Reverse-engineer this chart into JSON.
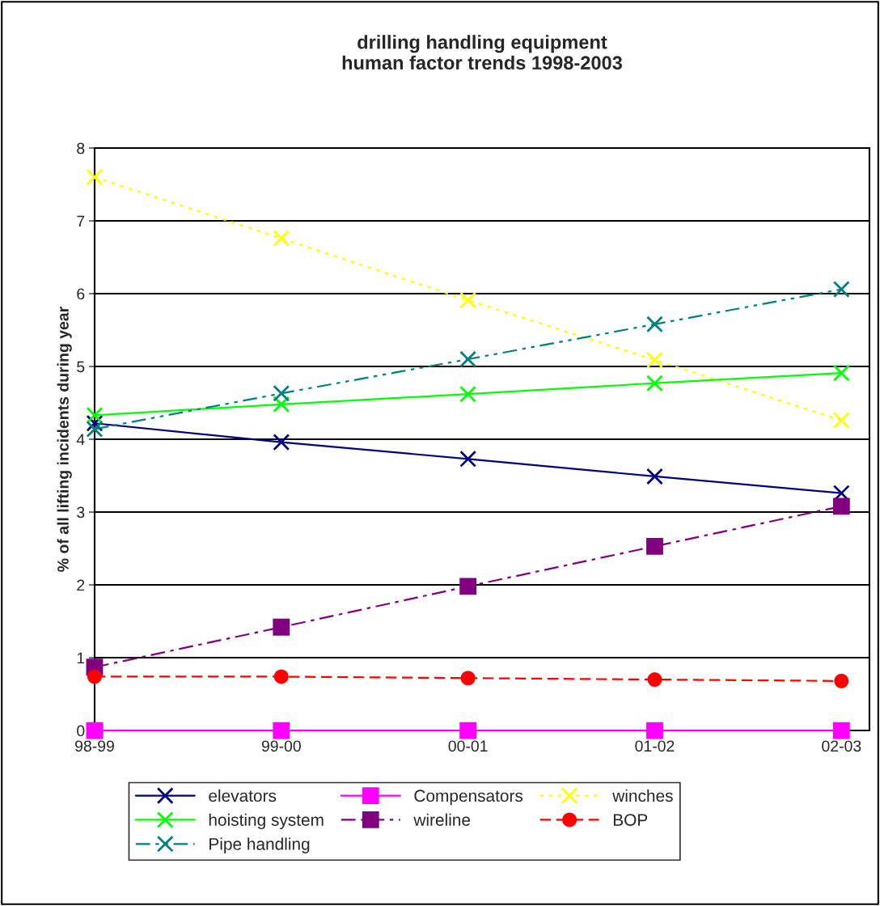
{
  "chart_data": {
    "type": "line",
    "title": "drilling handling equipment\nhuman factor trends 1998-2003",
    "ylabel": "% of all lifting incidents during year",
    "categories": [
      "98-99",
      "99-00",
      "00-01",
      "01-02",
      "02-03"
    ],
    "ylim": [
      0,
      8
    ],
    "yticks": [
      0,
      1,
      2,
      3,
      4,
      5,
      6,
      7,
      8
    ],
    "grid": "y",
    "legend": "bottom",
    "series": [
      {
        "name": "elevators",
        "color": "#000080",
        "marker": "cross",
        "line_style": "solid",
        "values": [
          4.22,
          3.96,
          3.73,
          3.49,
          3.26
        ]
      },
      {
        "name": "Compensators",
        "color": "#ff00ff",
        "marker": "square",
        "line_style": "solid",
        "values": [
          0,
          0,
          0,
          0,
          0
        ]
      },
      {
        "name": "winches",
        "color": "#ffff00",
        "marker": "cross",
        "line_style": "dotted",
        "values": [
          7.6,
          6.76,
          5.91,
          5.09,
          4.26
        ]
      },
      {
        "name": "hoisting system",
        "color": "#00ff00",
        "marker": "cross",
        "line_style": "solid",
        "values": [
          4.33,
          4.48,
          4.62,
          4.77,
          4.91
        ]
      },
      {
        "name": "wireline",
        "color": "#800080",
        "marker": "square",
        "line_style": "dashdot",
        "values": [
          0.87,
          1.42,
          1.98,
          2.53,
          3.08
        ]
      },
      {
        "name": "BOP",
        "color": "#ff0000",
        "marker": "circle",
        "line_style": "dashed",
        "values": [
          0.74,
          0.74,
          0.72,
          0.7,
          0.68
        ]
      },
      {
        "name": "Pipe handling",
        "color": "#008080",
        "marker": "cross",
        "line_style": "dashdotdot",
        "values": [
          4.14,
          4.63,
          5.1,
          5.58,
          6.06
        ]
      }
    ]
  }
}
